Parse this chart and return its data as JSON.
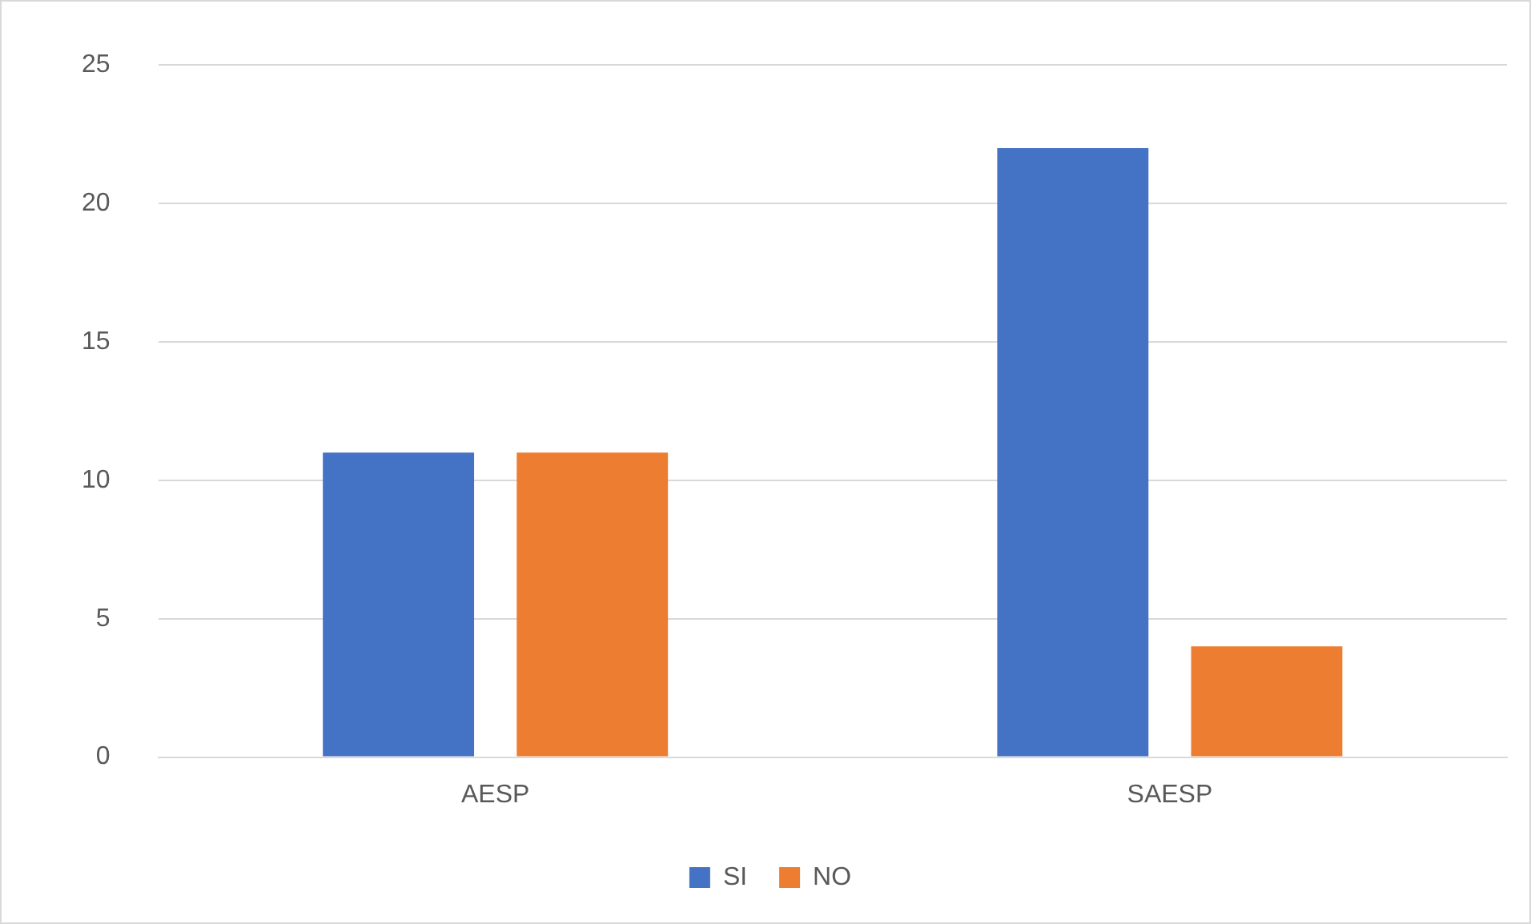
{
  "chart_data": {
    "type": "bar",
    "categories": [
      "AESP",
      "SAESP"
    ],
    "series": [
      {
        "name": "SI",
        "color": "#4472c4",
        "values": [
          11,
          22
        ]
      },
      {
        "name": "NO",
        "color": "#ed7d31",
        "values": [
          11,
          4
        ]
      }
    ],
    "ylim": [
      0,
      25
    ],
    "yticks": [
      0,
      5,
      10,
      15,
      20,
      25
    ],
    "grid": "y",
    "legend": "bottom"
  }
}
